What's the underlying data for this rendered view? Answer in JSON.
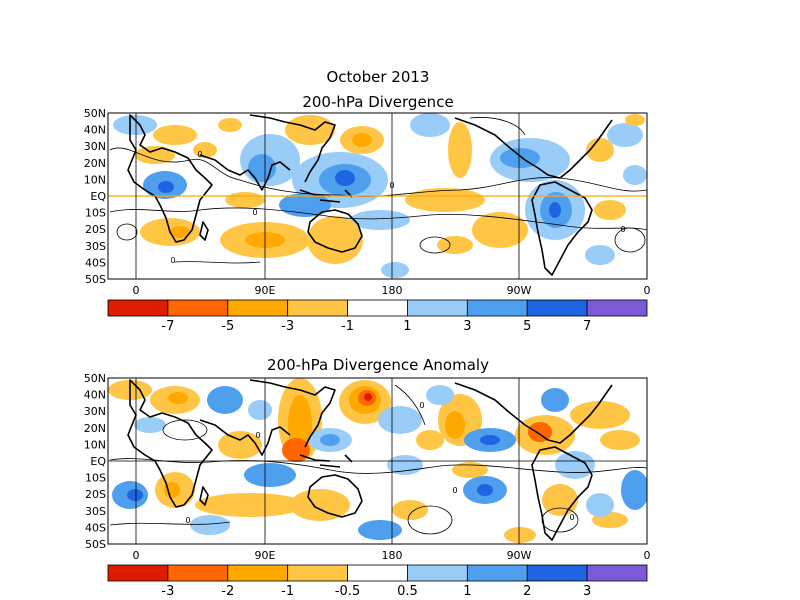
{
  "main_title": "October 2013",
  "maps": [
    {
      "title": "200-hPa Divergence",
      "lat_labels": [
        "50N",
        "40N",
        "30N",
        "20N",
        "10N",
        "EQ",
        "10S",
        "20S",
        "30S",
        "40S",
        "50S"
      ],
      "lon_labels": [
        "0",
        "90E",
        "180",
        "90W",
        "0"
      ],
      "colorbar": {
        "colors": [
          "#dd1c00",
          "#ff6600",
          "#ffa800",
          "#ffc545",
          "#ffffff",
          "#99ccf7",
          "#4f9fef",
          "#1f64e0",
          "#7c5ad5"
        ],
        "labels": [
          "-7",
          "-5",
          "-3",
          "-1",
          "1",
          "3",
          "5",
          "7"
        ]
      }
    },
    {
      "title": "200-hPa Divergence Anomaly",
      "lat_labels": [
        "50N",
        "40N",
        "30N",
        "20N",
        "10N",
        "EQ",
        "10S",
        "20S",
        "30S",
        "40S",
        "50S"
      ],
      "lon_labels": [
        "0",
        "90E",
        "180",
        "90W",
        "0"
      ],
      "colorbar": {
        "colors": [
          "#dd1c00",
          "#ff6600",
          "#ffa800",
          "#ffc545",
          "#ffffff",
          "#99ccf7",
          "#4f9fef",
          "#1f64e0",
          "#7c5ad5"
        ],
        "labels": [
          "-3",
          "-2",
          "-1",
          "-0.5",
          "0.5",
          "1",
          "2",
          "3"
        ]
      }
    }
  ],
  "contour_label": "0"
}
